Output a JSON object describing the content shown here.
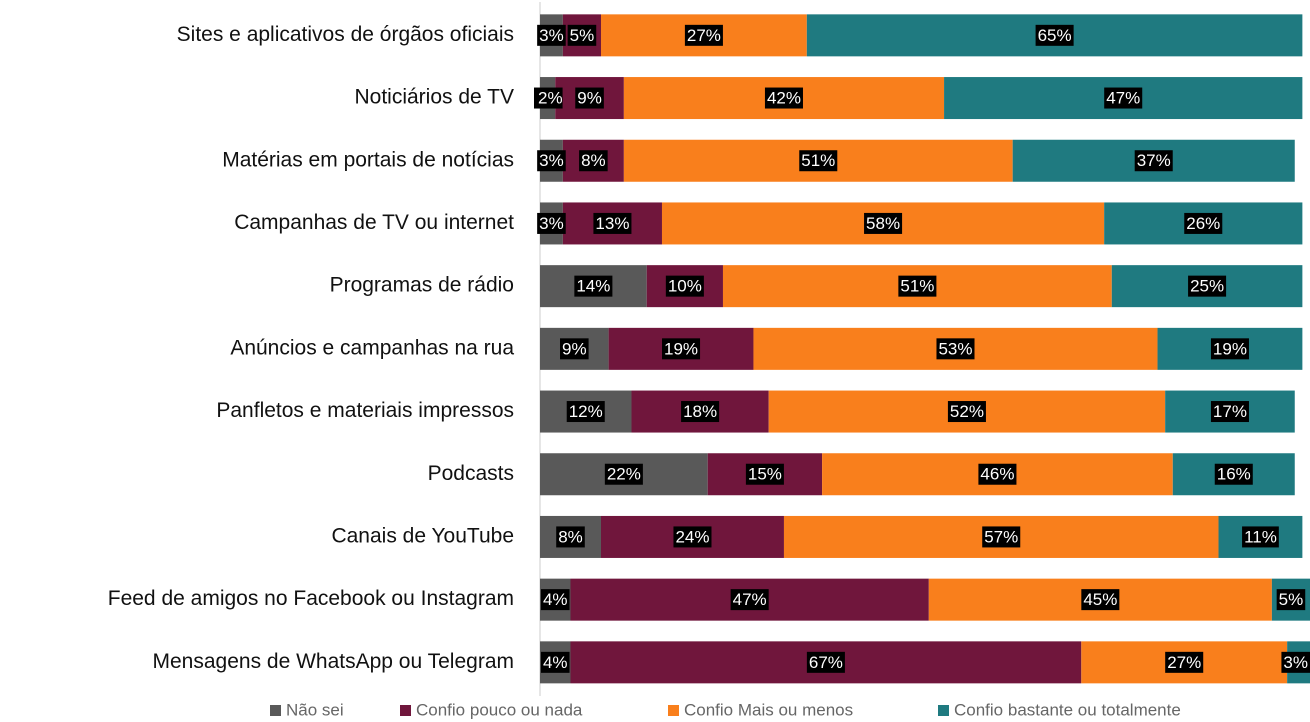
{
  "chart_data": {
    "type": "stacked-bar-horizontal",
    "categories": [
      "Sites e aplicativos de órgãos oficiais",
      "Noticiários de TV",
      "Matérias em portais de notícias",
      "Campanhas de TV ou internet",
      "Programas de rádio",
      "Anúncios e campanhas na rua",
      "Panfletos e materiais impressos",
      "Podcasts",
      "Canais de YouTube",
      "Feed de amigos no Facebook ou Instagram",
      "Mensagens de WhatsApp ou Telegram"
    ],
    "series": [
      {
        "name": "Não sei",
        "color": "#595959",
        "values": [
          3,
          2,
          3,
          3,
          14,
          9,
          12,
          22,
          8,
          4,
          4
        ],
        "value_labels": [
          "3%",
          "2%",
          "3%",
          "3%",
          "14%",
          "9%",
          "12%",
          "22%",
          "8%",
          "4%",
          "4%"
        ]
      },
      {
        "name": "Confio pouco ou nada",
        "color": "#70163c",
        "values": [
          5,
          9,
          8,
          13,
          10,
          19,
          18,
          15,
          24,
          47,
          67
        ],
        "value_labels": [
          "5%",
          "9%",
          "8%",
          "13%",
          "10%",
          "19%",
          "18%",
          "15%",
          "24%",
          "47%",
          "67%"
        ]
      },
      {
        "name": "Confio Mais ou menos",
        "color": "#f97f1c",
        "values": [
          27,
          42,
          51,
          58,
          51,
          53,
          52,
          46,
          57,
          45,
          27
        ],
        "value_labels": [
          "27%",
          "42%",
          "51%",
          "58%",
          "51%",
          "53%",
          "52%",
          "46%",
          "57%",
          "45%",
          "27%"
        ]
      },
      {
        "name": "Confio bastante ou totalmente",
        "color": "#1f7a80",
        "values": [
          65,
          47,
          37,
          26,
          25,
          19,
          17,
          16,
          11,
          5,
          3
        ],
        "value_labels": [
          "65%",
          "47%",
          "37%",
          "26%",
          "25%",
          "19%",
          "17%",
          "16%",
          "11%",
          "5%",
          "3%"
        ]
      }
    ],
    "legend": "bottom"
  }
}
